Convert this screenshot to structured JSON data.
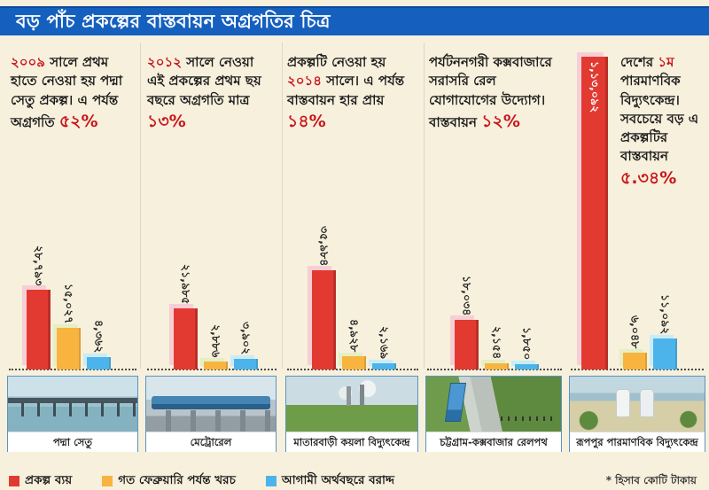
{
  "page": {
    "title": "বড় পাঁচ প্রকল্পের বাস্তবায়ন অগ্রগতির চিত্র",
    "footnote": "* হিসাব কোটি টাকায়"
  },
  "legend": [
    {
      "label": "প্রকল্প ব্যয়",
      "color": "#e23a31"
    },
    {
      "label": "গত ফেব্রুয়ারি পর্যন্ত খরচ",
      "color": "#f8b43f"
    },
    {
      "label": "আগামী অর্থবছরে বরাদ্দ",
      "color": "#4cb4ea"
    }
  ],
  "colors": {
    "title_bar": "#1560bf",
    "background": "#f7f0dc",
    "accent_red_text": "#c9161d"
  },
  "chart_data": {
    "type": "bar",
    "title": "বড় পাঁচ প্রকল্পের বাস্তবায়ন অগ্রগতির চিত্র",
    "unit_note": "হিসাব কোটি টাকায় (values in crore taka)",
    "series_names": [
      "প্রকল্প ব্যয়",
      "গত ফেব্রুয়ারি পর্যন্ত খরচ",
      "আগামী অর্থবছরে বরাদ্দ"
    ],
    "categories": [
      "পদ্মা সেতু",
      "মেট্রোরেল",
      "মাতারবাড়ী কয়লা বিদ্যুৎকেন্দ্র",
      "চট্টগ্রাম-কক্সবাজার রেলপথ",
      "রূপপুর পারমাণবিক বিদ্যুৎকেন্দ্র"
    ],
    "series": [
      {
        "name": "প্রকল্প ব্যয়",
        "values": [
          28793,
          21985,
          35984,
          18034,
          113092
        ]
      },
      {
        "name": "গত ফেব্রুয়ারি পর্যন্ত খরচ",
        "values": [
          15027,
          2886,
          4928,
          2154,
          6048
        ]
      },
      {
        "name": "আগামী অর্থবছরে বরাদ্দ",
        "values": [
          4362,
          3902,
          2169,
          1850,
          11092
        ]
      }
    ],
    "progress_percent": [
      "৫২%",
      "১৩%",
      "১৪%",
      "১২%",
      "৫.৩৪%"
    ],
    "legend_position": "bottom",
    "grid": false
  },
  "columns": [
    {
      "desc": {
        "pre": "",
        "year": "২০০৯",
        "mid": " সালে প্রথম হাতে নেওয়া হয় পদ্মা সেতু প্রকল্প। এ পর্যন্ত অগ্রগতি ",
        "pct": "৫২%"
      },
      "caption": "পদ্মা সেতু",
      "bars": [
        {
          "name": "project-cost",
          "label": "২৮,৭৯৩",
          "value": 28793
        },
        {
          "name": "spent-till-february",
          "label": "১৫,০২৭",
          "value": 15027
        },
        {
          "name": "next-fy-allocation",
          "label": "৪,৩৬২",
          "value": 4362
        }
      ]
    },
    {
      "desc": {
        "pre": "",
        "year": "২০১২",
        "mid": " সালে নেওয়া এই প্রকল্পের প্রথম ছয় বছরে অগ্রগতি মাত্র ",
        "pct": "১৩%"
      },
      "caption": "মেট্রোরেল",
      "bars": [
        {
          "name": "project-cost",
          "label": "২১,৯৮৫",
          "value": 21985
        },
        {
          "name": "spent-till-february",
          "label": "২,৮৮৬",
          "value": 2886
        },
        {
          "name": "next-fy-allocation",
          "label": "৩,৯০২",
          "value": 3902
        }
      ]
    },
    {
      "desc": {
        "pre": "প্রকল্পটি নেওয়া হয় ",
        "year": "২০১৪",
        "mid": " সালে। এ পর্যন্ত বাস্তবায়ন হার প্রায় ",
        "pct": "১৪%"
      },
      "caption": "মাতারবাড়ী কয়লা বিদ্যুৎকেন্দ্র",
      "bars": [
        {
          "name": "project-cost",
          "label": "৩৫,৯৮৪",
          "value": 35984
        },
        {
          "name": "spent-till-february",
          "label": "৪,৯২৮",
          "value": 4928
        },
        {
          "name": "next-fy-allocation",
          "label": "২,১৬৯",
          "value": 2169
        }
      ]
    },
    {
      "desc": {
        "pre": "পর্যটননগরী কক্সবাজারে সরাসরি রেল যোগাযোগের উদ্যোগ। বাস্তবায়ন ",
        "year": "",
        "mid": "",
        "pct": "১২%"
      },
      "caption": "চট্টগ্রাম-কক্সবাজার রেলপথ",
      "bars": [
        {
          "name": "project-cost",
          "label": "১৮,০৩৪",
          "value": 18034
        },
        {
          "name": "spent-till-february",
          "label": "২,১৫৪",
          "value": 2154
        },
        {
          "name": "next-fy-allocation",
          "label": "১,৮৫০",
          "value": 1850
        }
      ]
    },
    {
      "desc": {
        "pre": "দেশের ",
        "year": "১ম",
        "mid": " পারমাণবিক বিদ্যুৎকেন্দ্র। সবচেয়ে বড় এ প্রকল্পটির বাস্তবায়ন ",
        "pct": "৫.৩৪%"
      },
      "caption": "রূপপুর পারমাণবিক বিদ্যুৎকেন্দ্র",
      "bars": [
        {
          "name": "project-cost",
          "label": "১,১৩,০৯২",
          "value": 113092,
          "label_inside": true
        },
        {
          "name": "spent-till-february",
          "label": "৬,০৪৮",
          "value": 6048
        },
        {
          "name": "next-fy-allocation",
          "label": "১১,০৯২",
          "value": 11092
        }
      ]
    }
  ]
}
